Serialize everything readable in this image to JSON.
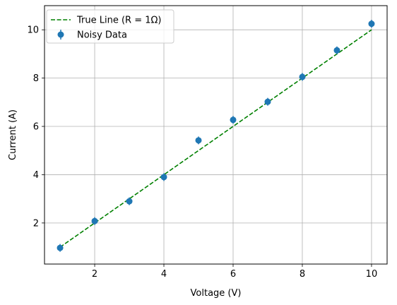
{
  "chart_data": {
    "type": "scatter",
    "title": "",
    "xlabel": "Voltage (V)",
    "ylabel": "Current (A)",
    "xlim": [
      0.55,
      10.45
    ],
    "ylim": [
      0.3,
      11.0
    ],
    "xticks": [
      2,
      4,
      6,
      8,
      10
    ],
    "yticks": [
      2,
      4,
      6,
      8,
      10
    ],
    "grid": true,
    "legend_position": "top-left",
    "series": [
      {
        "name": "True Line (R = 1Ω)",
        "kind": "line",
        "style": "dashed",
        "color": "#008000",
        "x": [
          1,
          10
        ],
        "y": [
          1,
          10
        ]
      },
      {
        "name": "Noisy Data",
        "kind": "errorbar",
        "color": "#1f77b4",
        "x": [
          1,
          2,
          3,
          4,
          5,
          6,
          7,
          8,
          9,
          10
        ],
        "y": [
          0.97,
          2.08,
          2.9,
          3.9,
          5.42,
          6.27,
          7.02,
          8.05,
          9.15,
          10.25
        ],
        "yerr": [
          0.16,
          0.16,
          0.16,
          0.16,
          0.16,
          0.16,
          0.16,
          0.16,
          0.16,
          0.16
        ]
      }
    ]
  }
}
